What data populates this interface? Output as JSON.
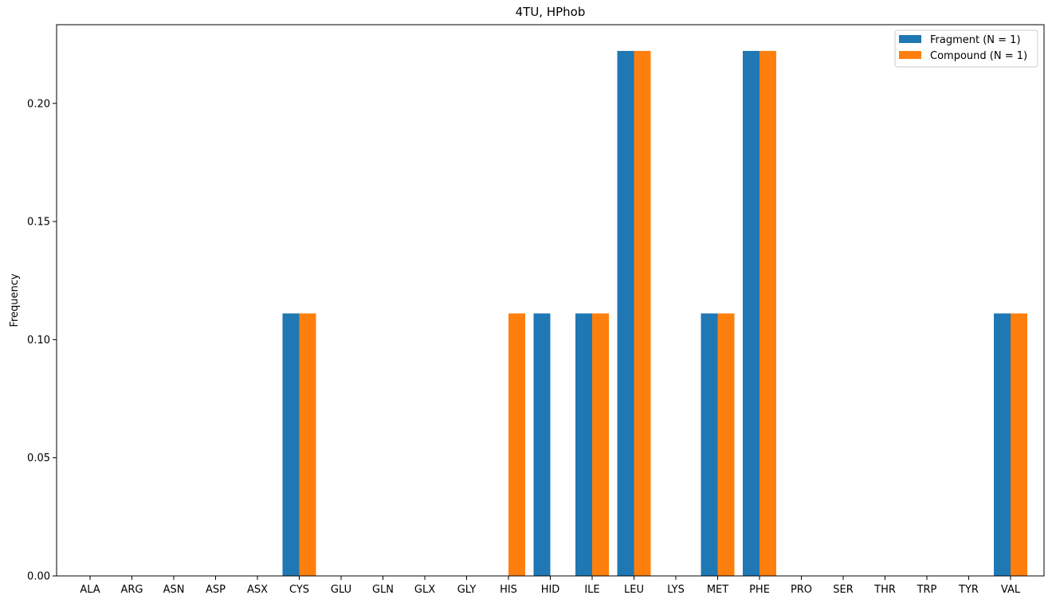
{
  "chart_data": {
    "type": "bar",
    "title": "4TU, HPhob",
    "xlabel": "",
    "ylabel": "Frequency",
    "ylim": [
      0,
      0.2333
    ],
    "yticks": [
      0.0,
      0.05,
      0.1,
      0.15,
      0.2
    ],
    "ytick_labels": [
      "0.00",
      "0.05",
      "0.10",
      "0.15",
      "0.20"
    ],
    "grid": false,
    "legend_position": "top-right",
    "categories": [
      "ALA",
      "ARG",
      "ASN",
      "ASP",
      "ASX",
      "CYS",
      "GLU",
      "GLN",
      "GLX",
      "GLY",
      "HIS",
      "HID",
      "ILE",
      "LEU",
      "LYS",
      "MET",
      "PHE",
      "PRO",
      "SER",
      "THR",
      "TRP",
      "TYR",
      "VAL"
    ],
    "series": [
      {
        "name": "Fragment (N = 1)",
        "color": "#1f77b4",
        "values": [
          0,
          0,
          0,
          0,
          0,
          0.1111,
          0,
          0,
          0,
          0,
          0,
          0.1111,
          0.1111,
          0.2222,
          0,
          0.1111,
          0.2222,
          0,
          0,
          0,
          0,
          0,
          0.1111
        ]
      },
      {
        "name": "Compound (N = 1)",
        "color": "#ff7f0e",
        "values": [
          0,
          0,
          0,
          0,
          0,
          0.1111,
          0,
          0,
          0,
          0,
          0.1111,
          0,
          0.1111,
          0.2222,
          0,
          0.1111,
          0.2222,
          0,
          0,
          0,
          0,
          0,
          0.1111
        ]
      }
    ]
  }
}
